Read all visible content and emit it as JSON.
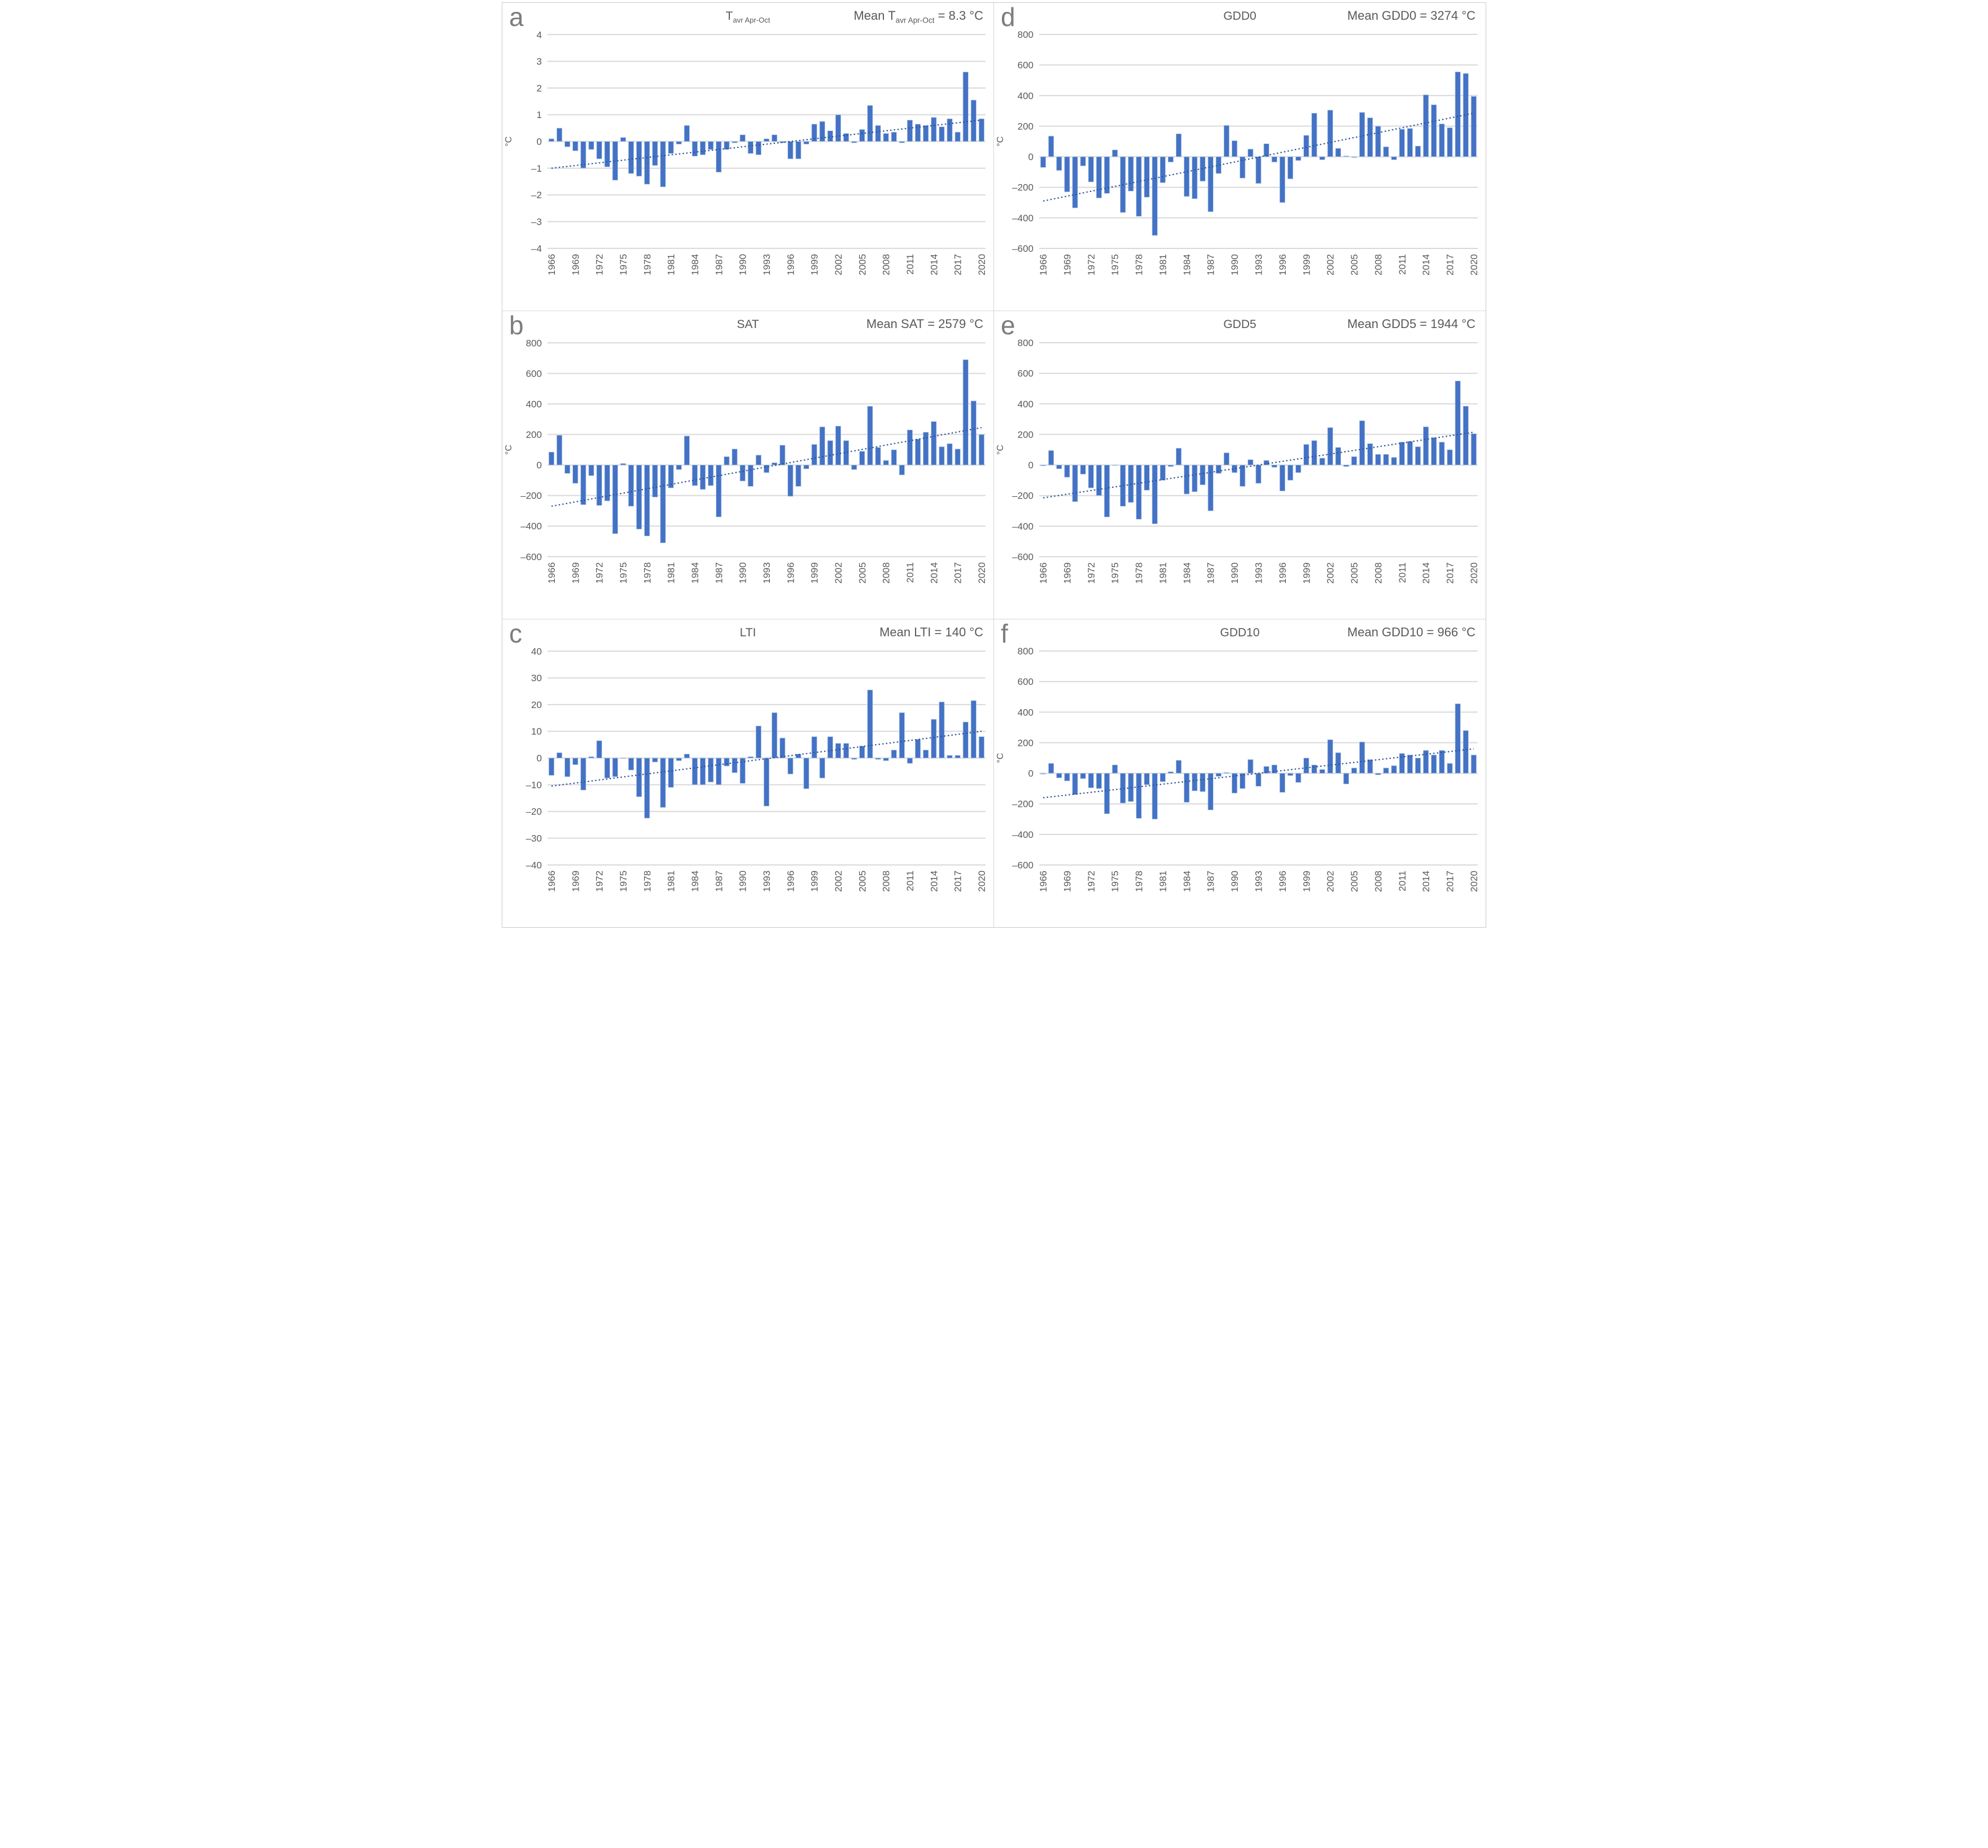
{
  "figure": {
    "background": "#ffffff",
    "bar_color": "#4472C4",
    "bar_edge_color": "#b8cfec",
    "trend_color": "#2F5597",
    "grid_color": "#D9D9D9",
    "text_color": "#595959",
    "letter_color": "#7d7d7d",
    "years": {
      "start": 1966,
      "end": 2020,
      "tick_interval": 3
    }
  },
  "chart_data": [
    {
      "panel": "a",
      "type": "bar",
      "title_main": "T",
      "title_sub": "avr Apr-Oct",
      "mean_prefix": "Mean T",
      "mean_sub": "avr Apr-Oct",
      "mean_suffix": " =  8.3 °C",
      "mean": 8.3,
      "mean_unit": "°C",
      "ylabel": "°C",
      "ylim": [
        -4,
        4
      ],
      "ytick_step": 1,
      "year_start": 1966,
      "year_end": 2020,
      "xtick_years": [
        1966,
        1969,
        1972,
        1975,
        1978,
        1981,
        1984,
        1987,
        1990,
        1993,
        1996,
        1999,
        2002,
        2005,
        2008,
        2011,
        2014,
        2017,
        2020
      ],
      "grid": true,
      "legend": "none",
      "trend": [
        -1.0,
        0.8
      ],
      "values": [
        0.1,
        0.5,
        -0.2,
        -0.35,
        -1.0,
        -0.3,
        -0.65,
        -0.95,
        -1.45,
        0.15,
        -1.2,
        -1.3,
        -1.6,
        -0.9,
        -1.7,
        -0.45,
        -0.1,
        0.6,
        -0.55,
        -0.5,
        -0.3,
        -1.15,
        -0.3,
        -0.05,
        0.25,
        -0.45,
        -0.5,
        0.1,
        0.25,
        -0.05,
        -0.65,
        -0.65,
        -0.1,
        0.65,
        0.75,
        0.4,
        1.0,
        0.3,
        -0.05,
        0.45,
        1.35,
        0.6,
        0.3,
        0.35,
        -0.05,
        0.8,
        0.65,
        0.6,
        0.9,
        0.55,
        0.85,
        0.35,
        2.6,
        1.55,
        0.85
      ]
    },
    {
      "panel": "d",
      "type": "bar",
      "title_main": "GDD0",
      "title_sub": "",
      "mean_prefix": "Mean GDD0",
      "mean_sub": "",
      "mean_suffix": " =  3274 °C",
      "mean": 3274,
      "mean_unit": "°C",
      "ylabel": "°C",
      "ylim": [
        -600,
        800
      ],
      "ytick_step": 200,
      "year_start": 1966,
      "year_end": 2020,
      "xtick_years": [
        1966,
        1969,
        1972,
        1975,
        1978,
        1981,
        1984,
        1987,
        1990,
        1993,
        1996,
        1999,
        2002,
        2005,
        2008,
        2011,
        2014,
        2017,
        2020
      ],
      "grid": true,
      "legend": "none",
      "trend": [
        -290,
        285
      ],
      "values": [
        -70,
        135,
        -90,
        -230,
        -335,
        -60,
        -165,
        -270,
        -240,
        45,
        -365,
        -225,
        -390,
        -265,
        -515,
        -170,
        -35,
        150,
        -260,
        -275,
        -160,
        -360,
        -110,
        205,
        105,
        -140,
        50,
        -175,
        85,
        -35,
        -300,
        -145,
        -25,
        140,
        285,
        -20,
        305,
        55,
        5,
        -5,
        290,
        255,
        200,
        65,
        -20,
        180,
        185,
        70,
        405,
        340,
        215,
        190,
        555,
        545,
        395
      ]
    },
    {
      "panel": "b",
      "type": "bar",
      "title_main": "SAT",
      "title_sub": "",
      "mean_prefix": "Mean SAT",
      "mean_sub": "",
      "mean_suffix": " =  2579 °C",
      "mean": 2579,
      "mean_unit": "°C",
      "ylabel": "°C",
      "ylim": [
        -600,
        800
      ],
      "ytick_step": 200,
      "year_start": 1966,
      "year_end": 2020,
      "xtick_years": [
        1966,
        1969,
        1972,
        1975,
        1978,
        1981,
        1984,
        1987,
        1990,
        1993,
        1996,
        1999,
        2002,
        2005,
        2008,
        2011,
        2014,
        2017,
        2020
      ],
      "grid": true,
      "legend": "none",
      "trend": [
        -270,
        245
      ],
      "values": [
        85,
        195,
        -55,
        -120,
        -260,
        -70,
        -265,
        -235,
        -450,
        10,
        -270,
        -420,
        -465,
        -210,
        -510,
        -150,
        -30,
        190,
        -135,
        -160,
        -135,
        -340,
        55,
        105,
        -105,
        -140,
        65,
        -50,
        15,
        130,
        -205,
        -140,
        -25,
        135,
        250,
        160,
        255,
        160,
        -30,
        90,
        385,
        115,
        30,
        100,
        -65,
        230,
        170,
        215,
        285,
        120,
        140,
        105,
        690,
        420,
        200
      ]
    },
    {
      "panel": "e",
      "type": "bar",
      "title_main": "GDD5",
      "title_sub": "",
      "mean_prefix": "Mean GDD5",
      "mean_sub": "",
      "mean_suffix": " =  1944 °C",
      "mean": 1944,
      "mean_unit": "°C",
      "ylabel": "°C",
      "ylim": [
        -600,
        800
      ],
      "ytick_step": 200,
      "year_start": 1966,
      "year_end": 2020,
      "xtick_years": [
        1966,
        1969,
        1972,
        1975,
        1978,
        1981,
        1984,
        1987,
        1990,
        1993,
        1996,
        1999,
        2002,
        2005,
        2008,
        2011,
        2014,
        2017,
        2020
      ],
      "grid": true,
      "legend": "none",
      "trend": [
        -215,
        215
      ],
      "values": [
        -5,
        95,
        -25,
        -80,
        -240,
        -60,
        -150,
        -200,
        -340,
        0,
        -270,
        -245,
        -355,
        -165,
        -385,
        -100,
        -10,
        110,
        -190,
        -175,
        -130,
        -300,
        -55,
        80,
        -50,
        -140,
        35,
        -120,
        30,
        -15,
        -170,
        -100,
        -50,
        135,
        160,
        45,
        245,
        115,
        -10,
        55,
        290,
        140,
        70,
        70,
        50,
        150,
        155,
        120,
        250,
        180,
        150,
        100,
        550,
        385,
        205
      ]
    },
    {
      "panel": "c",
      "type": "bar",
      "title_main": "LTI",
      "title_sub": "",
      "mean_prefix": "Mean LTI",
      "mean_sub": "",
      "mean_suffix": " =  140 °C",
      "mean": 140,
      "mean_unit": "°C",
      "ylabel": "",
      "ylim": [
        -40,
        40
      ],
      "ytick_step": 10,
      "year_start": 1966,
      "year_end": 2020,
      "xtick_years": [
        1966,
        1969,
        1972,
        1975,
        1978,
        1981,
        1984,
        1987,
        1990,
        1993,
        1996,
        1999,
        2002,
        2005,
        2008,
        2011,
        2014,
        2017,
        2020
      ],
      "grid": true,
      "legend": "none",
      "trend": [
        -10.5,
        10
      ],
      "values": [
        -6.5,
        2,
        -7,
        -2.5,
        -12,
        0.5,
        6.5,
        -7.5,
        -7,
        0,
        -4.5,
        -14.5,
        -22.5,
        -1.5,
        -18.5,
        -11,
        -1,
        1.5,
        -10,
        -10,
        -9,
        -10,
        -3,
        -5.5,
        -9.5,
        0.5,
        12,
        -18,
        17,
        7.5,
        -6,
        1.5,
        -11.5,
        8,
        -7.5,
        8,
        5.5,
        5.5,
        -0.5,
        4.5,
        25.5,
        -0.5,
        -1,
        3,
        17,
        -2,
        7,
        3,
        14.5,
        21,
        1,
        1,
        13.5,
        21.5,
        8
      ]
    },
    {
      "panel": "f",
      "type": "bar",
      "title_main": "GDD10",
      "title_sub": "",
      "mean_prefix": "Mean GDD10",
      "mean_sub": "",
      "mean_suffix": " =  966 °C",
      "mean": 966,
      "mean_unit": "°C",
      "ylabel": "°C",
      "ylim": [
        -600,
        800
      ],
      "ytick_step": 200,
      "year_start": 1966,
      "year_end": 2020,
      "xtick_years": [
        1966,
        1969,
        1972,
        1975,
        1978,
        1981,
        1984,
        1987,
        1990,
        1993,
        1996,
        1999,
        2002,
        2005,
        2008,
        2011,
        2014,
        2017,
        2020
      ],
      "grid": true,
      "legend": "none",
      "trend": [
        -160,
        160
      ],
      "values": [
        -5,
        65,
        -30,
        -50,
        -140,
        -35,
        -95,
        -100,
        -265,
        55,
        -195,
        -185,
        -295,
        -75,
        -300,
        -55,
        10,
        85,
        -190,
        -115,
        -120,
        -240,
        -20,
        5,
        -130,
        -100,
        90,
        -85,
        45,
        55,
        -125,
        -15,
        -60,
        100,
        55,
        25,
        220,
        135,
        -70,
        35,
        205,
        90,
        -10,
        35,
        50,
        130,
        120,
        100,
        150,
        120,
        150,
        65,
        455,
        280,
        120
      ]
    }
  ]
}
